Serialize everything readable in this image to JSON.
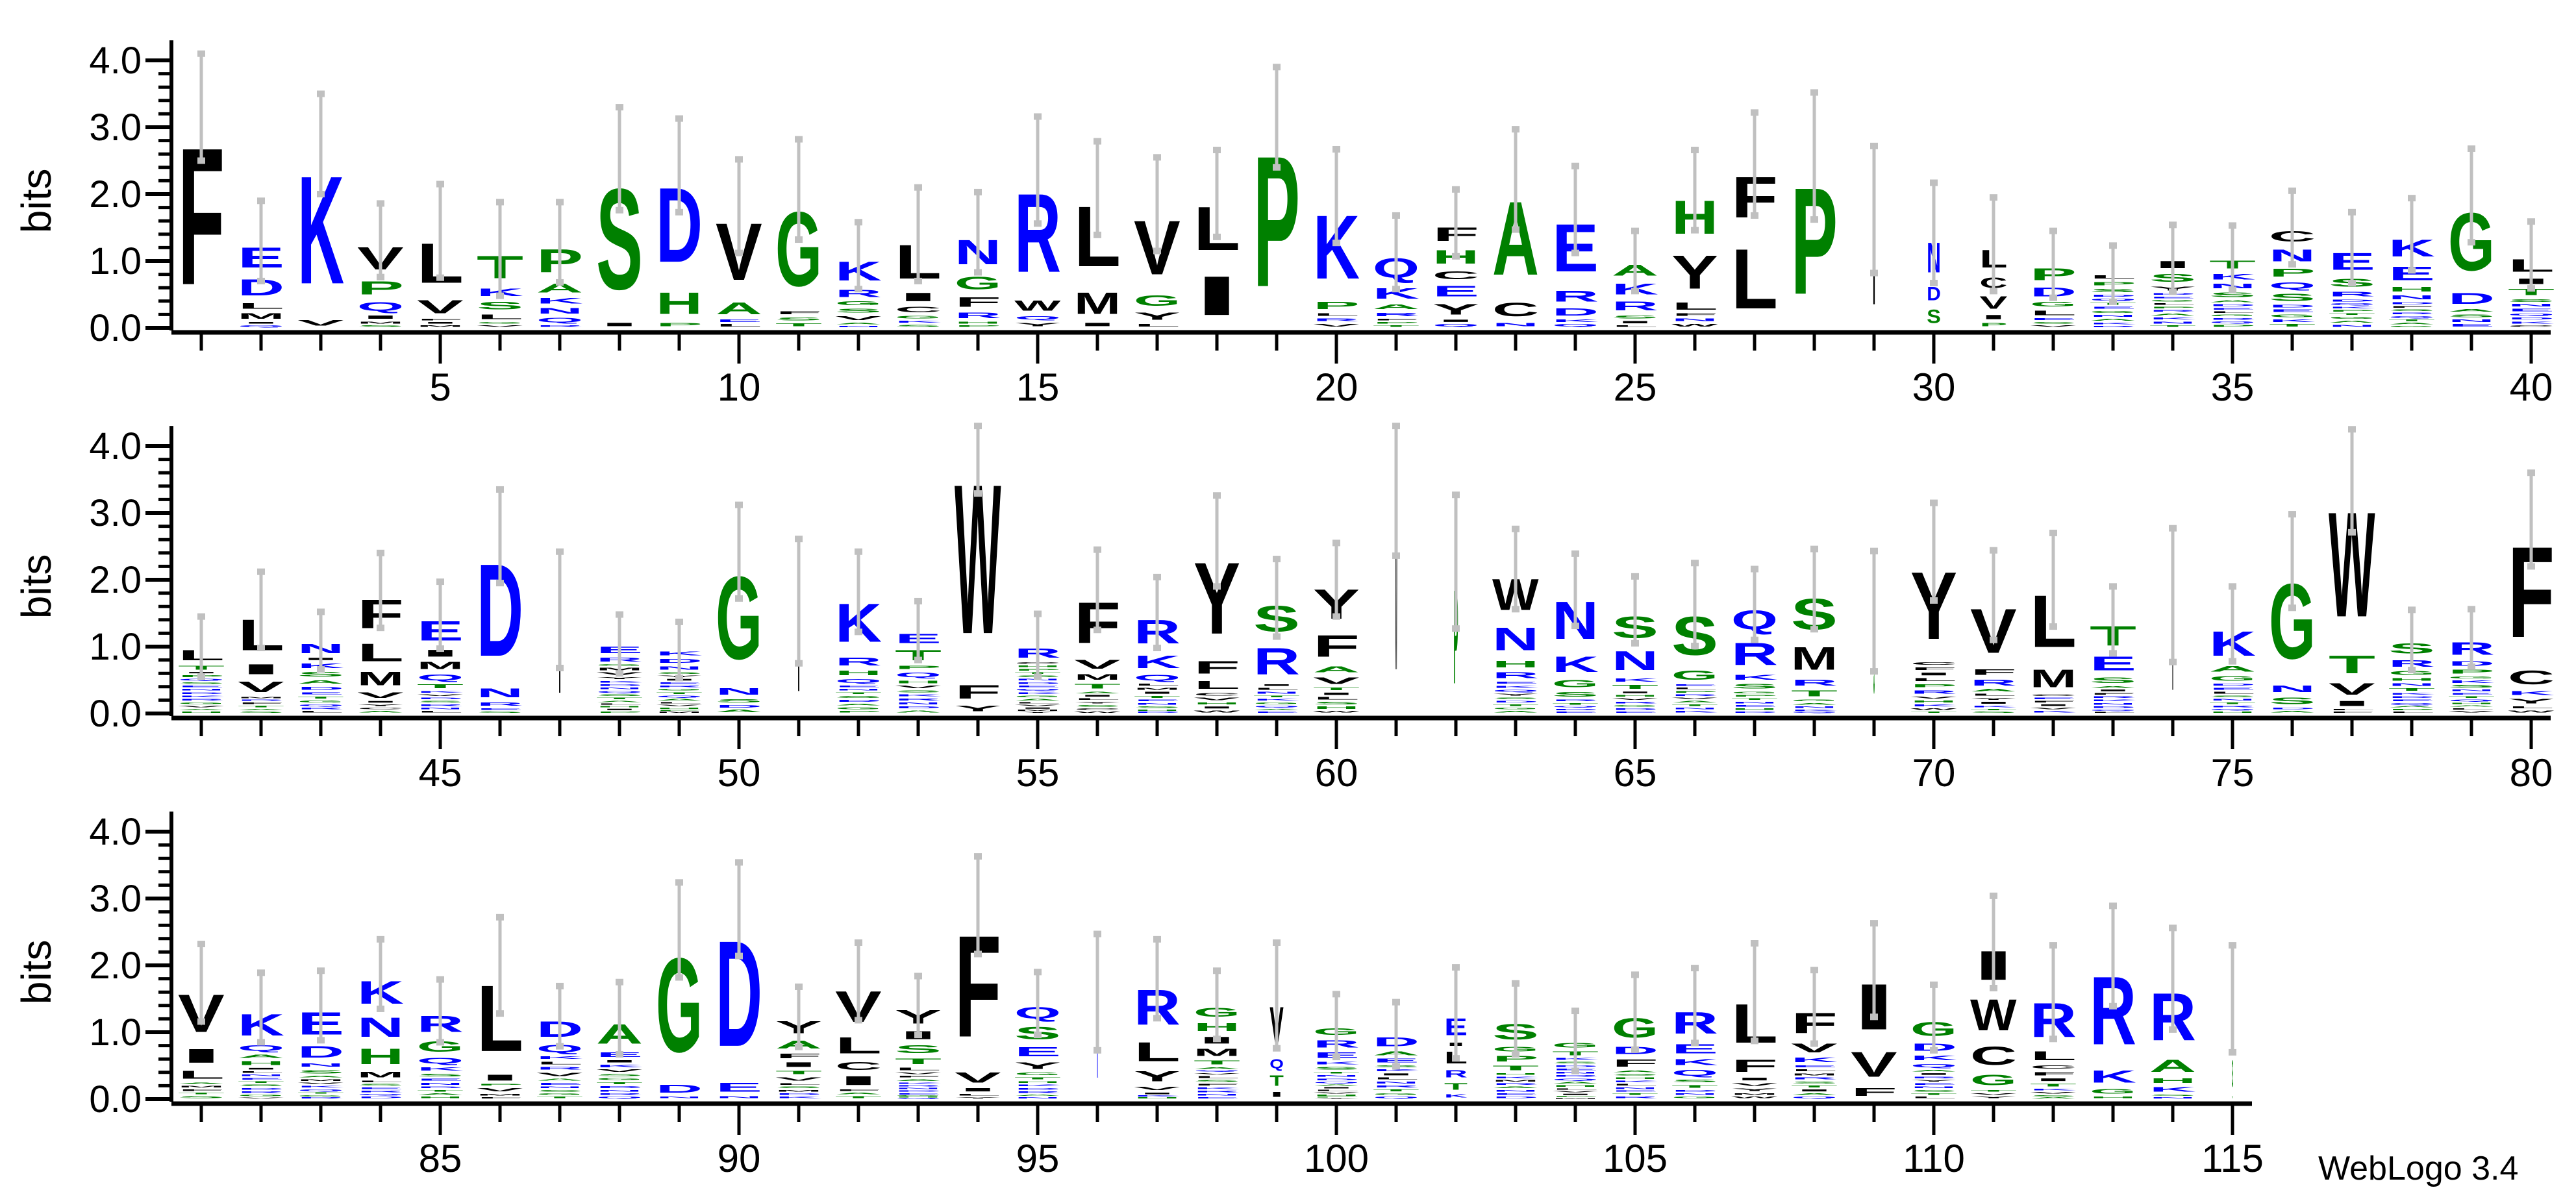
{
  "footer": "WebLogo 3.4",
  "chart_data": {
    "type": "bar",
    "title": "",
    "ylabel": "bits",
    "xlabel": "",
    "ylim": [
      0,
      4.3
    ],
    "yticks": [
      "0.0",
      "1.0",
      "2.0",
      "3.0",
      "4.0"
    ],
    "grid": false,
    "rows": [
      {
        "start": 1,
        "end": 40,
        "xticks": [
          "5",
          "10",
          "15",
          "20",
          "25",
          "30",
          "35",
          "40"
        ]
      },
      {
        "start": 41,
        "end": 80,
        "xticks": [
          "45",
          "50",
          "55",
          "60",
          "65",
          "70",
          "75",
          "80"
        ]
      },
      {
        "start": 81,
        "end": 115,
        "xticks": [
          "85",
          "90",
          "95",
          "100",
          "105",
          "110",
          "115"
        ]
      }
    ],
    "colors": {
      "hydrophilic": {
        "letters": "RKDENQ",
        "color": "#0000ff"
      },
      "neutral": {
        "letters": "SGHTAP",
        "color": "#008000"
      },
      "hydrophobic": {
        "letters": "YVMCLFIW",
        "color": "#000000"
      },
      "error_bar": "#c0c0c0"
    },
    "positions": [
      {
        "n": 1,
        "l": "F3.3",
        "e": 0.8
      },
      {
        "n": 2,
        "l": "E.5 D.4 L.15 M.15 I.05 Q.05",
        "e": 0.6
      },
      {
        "n": 3,
        "l": "K2.6 V.15",
        "e": 0.75
      },
      {
        "n": 4,
        "l": "V.55 P.33 Q.22 I.1 M.06 S.05",
        "e": 0.55
      },
      {
        "n": 5,
        "l": "L.97 V.33 F.05 I.05 M.05",
        "e": 0.7
      },
      {
        "n": 6,
        "l": "T.55 K.2 S.2 L.13 G.05 V.05",
        "e": 0.7
      },
      {
        "n": 7,
        "l": "P.57 A.23 K.15 N.15 Q.13 R.05",
        "e": 0.6
      },
      {
        "n": 8,
        "l": "S2.43 I.1",
        "e": 0.77
      },
      {
        "n": 9,
        "l": "D1.8 H.53 P.1",
        "e": 0.7
      },
      {
        "n": 10,
        "l": "V1.38 A.3 E.07 L.07",
        "e": 0.7
      },
      {
        "n": 11,
        "l": "G1.8 F.09 S.09 T.09",
        "e": 0.75
      },
      {
        "n": 12,
        "l": "K.47 R.19 G.11 S.11 V.11 A.05 N.04",
        "e": 0.5
      },
      {
        "n": 13,
        "l": "L.83 I.22 C.15 G.08 K.06 S.06",
        "e": 0.7
      },
      {
        "n": 14,
        "l": "N.6 G.32 F.25 R.15 H.06 P.05",
        "e": 0.6
      },
      {
        "n": 15,
        "l": "R1.9 W.26 Q.1 Y.1",
        "e": 0.8
      },
      {
        "n": 16,
        "l": "L1.46 M.53 I.1",
        "e": 0.7
      },
      {
        "n": 17,
        "l": "V1.31 G.27 Y.19 L.08",
        "e": 0.7
      },
      {
        "n": 18,
        "l": "L1.06 I.95",
        "e": 0.65
      },
      {
        "n": 19,
        "l": "P3.15",
        "e": 0.75
      },
      {
        "n": 20,
        "l": "K1.54 P.19 L.08 R.08 V.08",
        "e": 0.7
      },
      {
        "n": 21,
        "l": "Q.48 K.27 A.13 R.1 F.05 P.05 T.05",
        "e": 0.55
      },
      {
        "n": 22,
        "l": "F.34 H.34 C.21 E.27 Y.27 I.07 Q.07",
        "e": 0.5
      },
      {
        "n": 23,
        "l": "A1.78 C.34 N.1",
        "e": 0.75
      },
      {
        "n": 24,
        "l": "E1.16 R.28 D.19 K.07 Q.07",
        "e": 0.65
      },
      {
        "n": 25,
        "l": "A.28 K.28 R.23 S.09 I.07 L.05",
        "e": 0.45
      },
      {
        "n": 26,
        "l": "H.82 Y.82 L.19 F.07 N.08 W.08",
        "e": 0.6
      },
      {
        "n": 27,
        "l": "F1.0 L1.45",
        "e": 0.77
      },
      {
        "n": 28,
        "l": "P2.57",
        "e": 0.95
      },
      {
        "n": 29,
        "l": "I1.77",
        "e": 0.95,
        "w": 0.06
      },
      {
        "n": 30,
        "l": "N.74 D.34 S.34",
        "e": 0.75,
        "w": 0.3
      },
      {
        "n": 31,
        "l": "L.44 C.27 V.32 I.12 P.1",
        "e": 0.7,
        "w": 0.6
      },
      {
        "n": 32,
        "l": "P.3 D.23 G.13 L.13 E.06 S.05 V.05",
        "e": 0.5
      },
      {
        "n": 33,
        "l": "L.1 P.1 S.1 D.06 Q.06 T.06 E.06 G.06 N.06 A.06 K.05 R.04",
        "e": 0.42
      },
      {
        "n": 34,
        "l": "I.19 S.21 Y.11 D.05 E.05 G.05 L.05 P.05 R.05 A.06 K.06 N.06 T.05",
        "e": 0.5
      },
      {
        "n": 35,
        "l": "T.21 K.15 N.13 S.13 A.06 D.06 E.05 L.05 G.05 R.05 Q.05 P.06",
        "e": 0.48
      },
      {
        "n": 36,
        "l": "C.27 N.3 P.21 Q.17 S.19 D.07 E.07 G.08 K.07 T.07",
        "e": 0.55
      },
      {
        "n": 37,
        "l": "E.42 S.21 R.13 D.06 Q.05 K.05 P.05 T.05 G.06 A.06 N.06",
        "e": 0.53
      },
      {
        "n": 38,
        "l": "K.42 E.34 H.13 N.11 D.06 F.05 S.05 R.05 Q.05 T.05 A.05 G.04",
        "e": 0.54
      },
      {
        "n": 39,
        "l": "G1.4 D.28 A.08 S.08 N.07 E.07",
        "e": 0.7
      },
      {
        "n": 40,
        "l": "L.32 I.15 T.17 S.08 N.07 E.07 Q.06 D.06 K.06 C.05",
        "e": 0.5
      },
      {
        "n": 41,
        "l": "L.26 T.11 I.04 P.06 Q.05 S.05 E.05 N.05 D.05 K.05 R.05 G.05 V.05 A.04 H.04",
        "e": 0.45
      },
      {
        "n": 42,
        "l": "L.76 I.26 V.27 M.04 R.04 F.05 T.05 A.04 S.04",
        "e": 0.57
      },
      {
        "n": 43,
        "l": "N.24 I.07 K.13 S.13 A.1 D.09 E.06 T.06 G.06 Q.05 R.05 L.05",
        "e": 0.43
      },
      {
        "n": 44,
        "l": "F.71 L.44 M.34 V.15 I.05 Y.05 C.05 A.05",
        "e": 0.56
      },
      {
        "n": 45,
        "l": "E.48 I.18 M.19 Q.16 T.11 K.05 V.05 D.05 S.05 R.05 N.05 L.05",
        "e": 0.5
      },
      {
        "n": 46,
        "l": "D2.23 N.23 R.1 E.05 S.04",
        "e": 0.7
      },
      {
        "n": 47,
        "l": "I1.55",
        "e": 0.87,
        "w": 0.05
      },
      {
        "n": 48,
        "l": "E.18 R.11 G.05 M.07 V.07 Y.06 K.05 D.05 N.05 Q.05 S.05 T.05 A.04 L.04 H.04 I.04 P.04",
        "e": 0.44
      },
      {
        "n": 49,
        "l": "K.11 D.11 N.1 S.05 Y.05 I.05 E.05 R.05 G.05 T.05 Q.05 A.05 L.04 V.04 H.04 P.03 M.03",
        "e": 0.42
      },
      {
        "n": 50,
        "l": "G2.0 N.18 S.1 D.07 A.07",
        "e": 0.7
      },
      {
        "n": 51,
        "l": "I1.68",
        "e": 0.93,
        "w": 0.05
      },
      {
        "n": 52,
        "l": "K.94 R.21 H.13 Q.11 E.05 N.05 T.05 S.06 D.06 A.05 G.06 P.05",
        "e": 0.6
      },
      {
        "n": 53,
        "l": "E.24 T.26 P.1 Q.13 H.08 V.07 S.06 K.06 R.06 N.06 D.06 A.06",
        "e": 0.44
      },
      {
        "n": 54,
        "l": "W3.6 F.34 Y.15",
        "e": 0.8
      },
      {
        "n": 55,
        "l": "R.24 C.05 H.05 P.05 T.05 S.05 N.05 D.05 E.05 Q.05 K.05 G.05 A.05 L.04 V.04 I.04 M.03 Y.03",
        "e": 0.47
      },
      {
        "n": 56,
        "l": "F1.0 V.23 M.15 T.13 A.05 I.05 L.05 Y.05 S.05 C.05 W.04",
        "e": 0.6
      },
      {
        "n": 57,
        "l": "R.58 K.32 Q.15 L.06 M.06 I.06 T.06 E.05 N.05 S.05 H.04 D.03",
        "e": 0.53
      },
      {
        "n": 58,
        "l": "Y1.73 F.32 L.21 C.07 V.07 H.06 I.06 W.06",
        "e": 0.68
      },
      {
        "n": 59,
        "l": "S.63 R.65 I.05 L.06 N.06 T.05 K.05 G.05 Q.05 A.04 E.04",
        "e": 0.58
      },
      {
        "n": 60,
        "l": "Y.73 F.53 A.16 V.18 T.07 I.07 L.07 S.07 H.07 W.05",
        "e": 0.55
      },
      {
        "n": 61,
        "l": "W3.34",
        "e": 0.98,
        "w": 0.05
      },
      {
        "n": 62,
        "l": "P2.27",
        "e": 1.0,
        "w": 0.1
      },
      {
        "n": 63,
        "l": "W.77 N.56 H.18 R.16 E.06 K.06 Q.06 Y.06 S.05 D.05 T.05 G.05 A.05",
        "e": 0.6
      },
      {
        "n": 64,
        "l": "N.92 K.39 G.19 S.13 R.05 T.05 Q.04 D.04 E.04",
        "e": 0.54
      },
      {
        "n": 65,
        "l": "S.53 N.47 K.1 T.11 I.05 H.05 V.05 R.05 G.05 D.05 E.04",
        "e": 0.5
      },
      {
        "n": 66,
        "l": "S.94 G.24 E.05 L.05 P.05 R.05 V.05 A.05 T.05 N.05 K.05",
        "e": 0.62
      },
      {
        "n": 67,
        "l": "Q.47 R.55 K.14 S.13 G.05 P.05 T.05 N.05 E.05 H.05 D.04",
        "e": 0.53
      },
      {
        "n": 68,
        "l": "S.76 M.56 R.16 T.16 G.05 A.05 N.05 K.04 Q.03",
        "e": 0.6
      },
      {
        "n": 69,
        "l": "S1.53",
        "e": 0.9,
        "w": 0.03
      },
      {
        "n": 70,
        "l": "Y1.63 C.08 F.08 I.08 L.09 P.09 R.1 V.06 H.06 K.06 W.05 T.04",
        "e": 0.73
      },
      {
        "n": 71,
        "l": "V1.08 F.15 R.16 A.07 L.06 Y.06 I.06 K.05 T.04 S.04",
        "e": 0.67
      },
      {
        "n": 72,
        "l": "L1.26 M.44 C.05 E.05 F.05 I.05 V.05 K.05",
        "e": 0.7
      },
      {
        "n": 73,
        "l": "T.48 E.35 S.15 A.05 I.05 F.05 R.05 K.05 N.05 D.05 Q.04 L.03",
        "e": 0.5
      },
      {
        "n": 74,
        "l": "I1.77",
        "e": 1.0,
        "w": 0.03
      },
      {
        "n": 75,
        "l": "K.6 A.15 G.13 D.06 E.06 L.06 S.05 N.05 T.05 R.05 Q.04 H.04",
        "e": 0.56
      },
      {
        "n": 76,
        "l": "G1.82 N.18 S.18 D.05 A.05",
        "e": 0.7
      },
      {
        "n": 77,
        "l": "W2.53 T.44 V.29 I.14 L.04 F.04",
        "e": 0.77
      },
      {
        "n": 78,
        "l": "S.26 R.18 G.11 H.08 N.08 T.07 K.05 D.05 E.05 Q.05 A.04 P.04 L.04",
        "e": 0.45
      },
      {
        "n": 79,
        "l": "R.32 D.13 P.11 G.06 K.07 S.07 N.05 E.05 T.05 Q.05 H.04 A.04 L.04 V.05",
        "e": 0.43
      },
      {
        "n": 80,
        "l": "F2.19 C.35 K.11 Y.13 L.06 W.06",
        "e": 0.7
      },
      {
        "n": 81,
        "l": "V.92 I.35 L.21 A.05 M.05 F.05 T.05 S.06",
        "e": 0.58
      },
      {
        "n": 82,
        "l": "K.53 Q.15 A.1 H.11 I.05 L.05 N.05 E.05 T.05 S.05 D.05 R.05 G.05 V.03",
        "e": 0.52
      },
      {
        "n": 83,
        "l": "E.55 D.29 N.1 S.1 A.05 M.05 V.05 K.05 Q.05 T.04 G.04 R.03",
        "e": 0.52
      },
      {
        "n": 84,
        "l": "K.56 N.48 H.39 M.15 L.05 S.05 E.05 R.05 Q.04 D.05",
        "e": 0.52
      },
      {
        "n": 85,
        "l": "R.4 G.27 Q.15 K.1 S.08 E.06 N.06 D.05 T.05 A.05 H.05",
        "e": 0.47
      },
      {
        "n": 86,
        "l": "L1.6 I.16 P.05 V.1 M.05 F.04",
        "e": 0.72
      },
      {
        "n": 87,
        "l": "D.39 Q.19 K.08 L.08 R.08 V.1 A.06 E.06 N.05 S.05 G.05 T.05",
        "e": 0.45
      },
      {
        "n": 88,
        "l": "A.48 E.13 I.07 K.07 V.07 S.06 G.06 T.06 D.06 N.05 R.05 Q.05",
        "e": 0.54
      },
      {
        "n": 89,
        "l": "G2.27 D.21 N.05",
        "e": 0.71
      },
      {
        "n": 90,
        "l": "D2.55 E.23 N.06",
        "e": 0.7
      },
      {
        "n": 91,
        "l": "Y.31 A.21 F.13 I.13 T.1 V.1 L.05 S.05 M.05 D.05 K.05",
        "e": 0.45
      },
      {
        "n": 92,
        "l": "V.76 L.4 C.21 I.23 F.05 A.05 T.06",
        "e": 0.58
      },
      {
        "n": 93,
        "l": "Y.34 I.21 S.21 T.15 L.08 V.05 F.05 A.05 K.04 R.04 N.04 D.04 E.04 G.02 H.02 Q.02",
        "e": 0.44
      },
      {
        "n": 94,
        "l": "F2.45 V.26 I.1 L.05 Y.04",
        "e": 0.73
      },
      {
        "n": 95,
        "l": "Q.29 S.31 E.24 Y.18 G.07 T.06 H.05 K.05 D.05 R.05 A.04 N.04",
        "e": 0.47
      },
      {
        "n": 96,
        "l": "K1.6",
        "e": 0.87,
        "w": 0.03
      },
      {
        "n": 97,
        "l": "R.86 L.47 Y.26 V.1 I.05 K.03 H.03",
        "e": 0.59
      },
      {
        "n": 98,
        "l": "G.23 H.21 I.18 M.19 T.11 A.05 Q.04 V.04 L.06 S.06 F.05 K.05 R.05 N.05 E.04",
        "e": 0.51
      },
      {
        "n": 99,
        "l": "V.9 Q.24 T.27 I.14",
        "e": 0.79,
        "w": 0.3
      },
      {
        "n": 100,
        "l": "G.18 R.19 E.15 K.08 S.08 T.05 N.05 D.05 Q.04 A.04 I.04 L.04 V.04 H.03 P.02 Y.02",
        "e": 0.47
      },
      {
        "n": 101,
        "l": "D.23 A.11 E.11 S.06 K.06 I.06 L.06 N.06 R.06 T.06 G.05 Q.05",
        "e": 0.48
      },
      {
        "n": 102,
        "l": "E.42 I.1 L.3 R.19 T.18 K.1",
        "e": 0.68,
        "w": 0.5
      },
      {
        "n": 103,
        "l": "S.39 G.13 P.15 T.13 H.05 K.05 M.05 R.05 A.05 N.05 E.05 D.05",
        "e": 0.53
      },
      {
        "n": 104,
        "l": "G.13 T.11 K.06 S.05 D.05 E.05 N.05 R.05 Q.05 A.05 H.05 L.04 V.04 I.04 P.03 M.02",
        "e": 0.45
      },
      {
        "n": 105,
        "l": "G.48 D.19 F.19 A.05 S.05 H.05 K.05 L.05 N.05 E.04 T.05 R.05",
        "e": 0.56
      },
      {
        "n": 106,
        "l": "R.53 E.24 K.16 Q.16 S.08 T.08 D.05 N.05 G.05",
        "e": 0.56
      },
      {
        "n": 107,
        "l": "L.95 F.31 I.08 V.08 Y.08 M.05 W.05",
        "e": 0.73
      },
      {
        "n": 108,
        "l": "F.5 V.23 K.13 E.06 L.06 M.06 R.06 S.06 T.06 I.06 A.05 Q.05",
        "e": 0.55
      },
      {
        "n": 109,
        "l": "I1.11 V.61 F.21",
        "e": 0.7
      },
      {
        "n": 110,
        "l": "G.35 D.19 K.13 Q.1 A.05 I.05 R.05 Y.05 E.05 N.05 S.05 T.05 L.05",
        "e": 0.49
      },
      {
        "n": 111,
        "l": "I.71 W.77 C.45 G.27 T.05 V.05 Y.05",
        "e": 0.69
      },
      {
        "n": 112,
        "l": "R.84 L.23 C.1 F.1 I.08 T.08 K.05 V.05 S.04 A.03",
        "e": 0.7
      },
      {
        "n": 113,
        "l": "R1.65 K.31 G.13 H.05",
        "e": 0.75
      },
      {
        "n": 114,
        "l": "R1.15 A.31 H.13 K.13 S.04 N.04",
        "e": 0.76
      },
      {
        "n": 115,
        "l": "N.8 S.65 T.05",
        "e": 0.8,
        "w": 0.03
      }
    ]
  }
}
